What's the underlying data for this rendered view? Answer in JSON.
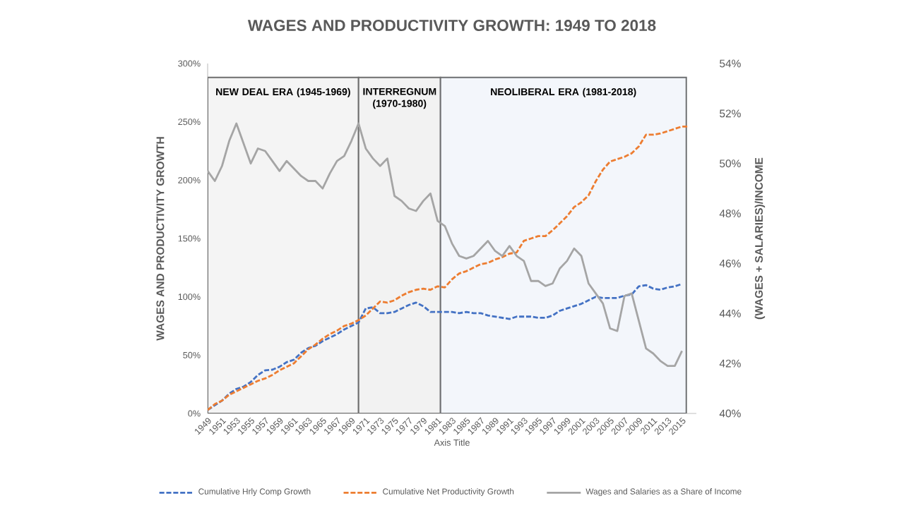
{
  "chart_data": {
    "type": "line",
    "title": "WAGES AND PRODUCTIVITY GROWTH: 1949 TO 2018",
    "xlabel": "Axis Title",
    "ylabel": "WAGES AND PRODUCTIVITY GROWTH",
    "y2label": "(WAGES + SALARIES)/INCOME",
    "x": [
      1949,
      1950,
      1951,
      1952,
      1953,
      1954,
      1955,
      1956,
      1957,
      1958,
      1959,
      1960,
      1961,
      1962,
      1963,
      1964,
      1965,
      1966,
      1967,
      1968,
      1969,
      1970,
      1971,
      1972,
      1973,
      1974,
      1975,
      1976,
      1977,
      1978,
      1979,
      1980,
      1981,
      1982,
      1983,
      1984,
      1985,
      1986,
      1987,
      1988,
      1989,
      1990,
      1991,
      1992,
      1993,
      1994,
      1995,
      1996,
      1997,
      1998,
      1999,
      2000,
      2001,
      2002,
      2003,
      2004,
      2005,
      2006,
      2007,
      2008,
      2009,
      2010,
      2011,
      2012,
      2013,
      2014,
      2015,
      2016
    ],
    "xlim": [
      1949,
      2017
    ],
    "xticks": [
      1949,
      1951,
      1953,
      1955,
      1957,
      1959,
      1961,
      1963,
      1965,
      1967,
      1969,
      1971,
      1973,
      1975,
      1977,
      1979,
      1981,
      1983,
      1985,
      1987,
      1989,
      1991,
      1993,
      1995,
      1997,
      1999,
      2001,
      2003,
      2005,
      2007,
      2009,
      2011,
      2013,
      2015
    ],
    "ylim": [
      0,
      300
    ],
    "yticks": [
      {
        "value": 0,
        "label": "0%"
      },
      {
        "value": 50,
        "label": "50%"
      },
      {
        "value": 100,
        "label": "100%"
      },
      {
        "value": 150,
        "label": "150%"
      },
      {
        "value": 200,
        "label": "200%"
      },
      {
        "value": 250,
        "label": "250%"
      },
      {
        "value": 300,
        "label": "300%"
      }
    ],
    "y2lim": [
      40,
      54
    ],
    "y2ticks": [
      {
        "value": 40,
        "label": "40%"
      },
      {
        "value": 42,
        "label": "42%"
      },
      {
        "value": 44,
        "label": "44%"
      },
      {
        "value": 46,
        "label": "46%"
      },
      {
        "value": 48,
        "label": "48%"
      },
      {
        "value": 50,
        "label": "50%"
      },
      {
        "value": 52,
        "label": "52%"
      },
      {
        "value": 54,
        "label": "54%"
      }
    ],
    "legend": "bottom",
    "series": [
      {
        "name": "Cumulative Hrly Comp Growth",
        "color": "#4472c4",
        "line_style": "dashed",
        "values": [
          3,
          7,
          11,
          17,
          21,
          23,
          27,
          33,
          37,
          37.5,
          40,
          44,
          46,
          52,
          56,
          58,
          62,
          65,
          68,
          72,
          75,
          78,
          90,
          91,
          86,
          86,
          87,
          90,
          93,
          95,
          92,
          87,
          87,
          87,
          87,
          86,
          87,
          86,
          86,
          84,
          83,
          82,
          81,
          83,
          83,
          83,
          82,
          82,
          84,
          88,
          90,
          92,
          94,
          97,
          100,
          99,
          99,
          99,
          101,
          102,
          109,
          110,
          107,
          106,
          108,
          109,
          111,
          null
        ]
      },
      {
        "name": "Cumulative Net Productivity Growth",
        "color": "#ed7d31",
        "line_style": "dashed",
        "values": [
          3,
          8,
          11,
          16,
          19,
          22,
          25,
          28,
          30,
          33,
          37,
          40,
          43,
          49,
          55,
          59,
          64,
          68,
          71,
          75,
          77,
          80,
          84,
          90,
          96,
          95,
          97,
          101,
          104,
          106,
          107,
          106,
          109,
          108,
          115,
          120,
          122,
          125,
          128,
          129,
          132,
          134,
          137,
          138,
          148,
          150,
          152,
          152,
          157,
          163,
          169,
          177,
          181,
          187,
          199,
          209,
          216,
          218,
          220,
          223,
          229,
          239,
          239,
          240,
          242,
          244,
          246,
          246
        ]
      },
      {
        "name": "Wages and Salaries as a Share of Income",
        "color": "#a5a5a5",
        "line_style": "solid",
        "axis": "y2",
        "values": [
          49.7,
          49.3,
          49.9,
          50.9,
          51.6,
          50.8,
          50.0,
          50.6,
          50.5,
          50.1,
          49.7,
          50.1,
          49.8,
          49.5,
          49.3,
          49.3,
          49.0,
          49.6,
          50.1,
          50.3,
          50.9,
          51.6,
          50.6,
          50.2,
          49.9,
          50.2,
          48.7,
          48.5,
          48.2,
          48.1,
          48.5,
          48.8,
          47.7,
          47.5,
          46.8,
          46.3,
          46.2,
          46.3,
          46.6,
          46.9,
          46.5,
          46.3,
          46.7,
          46.3,
          46.1,
          45.3,
          45.3,
          45.1,
          45.2,
          45.8,
          46.1,
          46.6,
          46.3,
          45.2,
          44.8,
          44.4,
          43.4,
          43.3,
          44.7,
          44.8,
          43.7,
          42.6,
          42.4,
          42.1,
          41.9,
          41.9,
          42.5,
          null
        ]
      }
    ],
    "bands": [
      {
        "axis": "x",
        "from": 1949,
        "to": 1970,
        "label": "NEW DEAL ERA (1945-1969)",
        "color": "#f4f4f4"
      },
      {
        "axis": "x",
        "from": 1970,
        "to": 1981.4,
        "label": "INTERREGNUM (1970-1980)",
        "color": "#f2f2f2"
      },
      {
        "axis": "x",
        "from": 1981.4,
        "to": 2015.6,
        "label": "NEOLIBERAL ERA (1981-2018)",
        "color": "#f3f6fb"
      }
    ]
  }
}
